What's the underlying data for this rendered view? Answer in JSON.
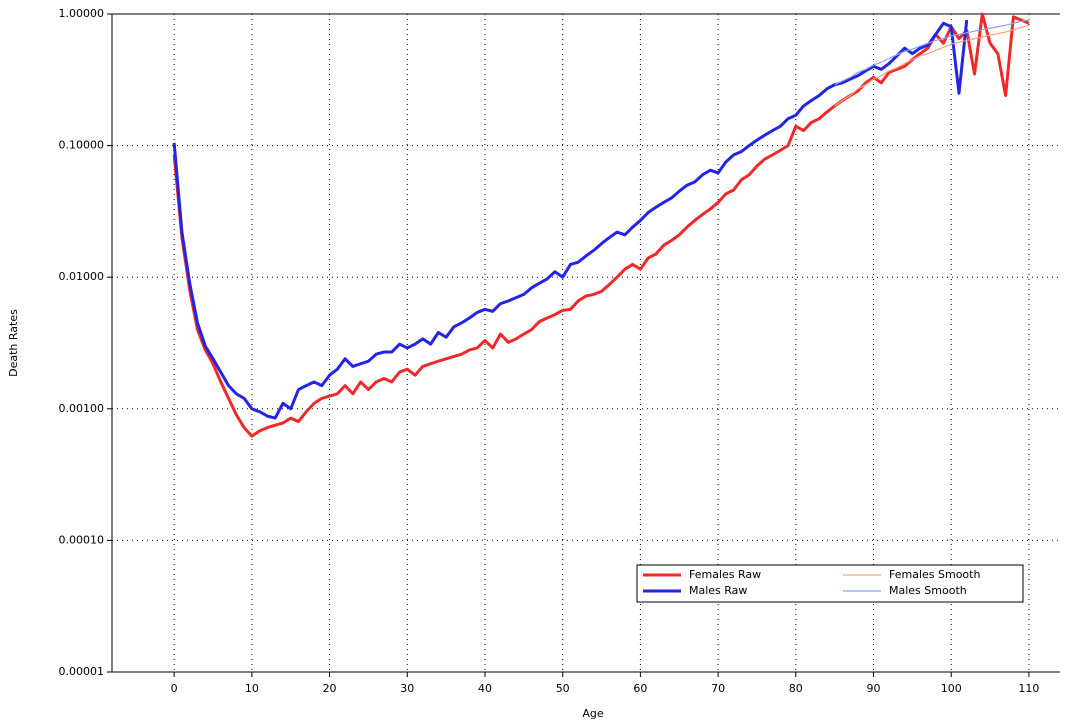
{
  "chart_data": {
    "type": "line",
    "x_label": "Age",
    "y_label": "Death Rates",
    "log_scale_y": true,
    "grid": true,
    "legend_position": "lower right",
    "xlim": [
      -8,
      114
    ],
    "ylim": [
      1e-05,
      1
    ],
    "xticks": [
      0,
      10,
      20,
      30,
      40,
      50,
      60,
      70,
      80,
      90,
      100,
      110
    ],
    "yticks": [
      {
        "value": 1e-05,
        "label": "0.00001"
      },
      {
        "value": 0.0001,
        "label": "0.00010"
      },
      {
        "value": 0.001,
        "label": "0.00100"
      },
      {
        "value": 0.01,
        "label": "0.01000"
      },
      {
        "value": 0.1,
        "label": "0.10000"
      },
      {
        "value": 1,
        "label": "1.00000"
      }
    ],
    "x": [
      0,
      1,
      2,
      3,
      4,
      5,
      6,
      7,
      8,
      9,
      10,
      11,
      12,
      13,
      14,
      15,
      16,
      17,
      18,
      19,
      20,
      21,
      22,
      23,
      24,
      25,
      26,
      27,
      28,
      29,
      30,
      31,
      32,
      33,
      34,
      35,
      36,
      37,
      38,
      39,
      40,
      41,
      42,
      43,
      44,
      45,
      46,
      47,
      48,
      49,
      50,
      51,
      52,
      53,
      54,
      55,
      56,
      57,
      58,
      59,
      60,
      61,
      62,
      63,
      64,
      65,
      66,
      67,
      68,
      69,
      70,
      71,
      72,
      73,
      74,
      75,
      76,
      77,
      78,
      79,
      80,
      81,
      82,
      83,
      84,
      85,
      86,
      87,
      88,
      89,
      90,
      91,
      92,
      93,
      94,
      95,
      96,
      97,
      98,
      99,
      100,
      101,
      102,
      103,
      104,
      105,
      106,
      107,
      108,
      109,
      110
    ],
    "series": [
      {
        "name": "Females Raw",
        "color": "#f02828",
        "width": 3,
        "values": [
          0.085,
          0.02,
          0.008,
          0.004,
          0.0028,
          0.0022,
          0.0016,
          0.0012,
          0.0009,
          0.00072,
          0.00062,
          0.00068,
          0.00072,
          0.00075,
          0.00078,
          0.00085,
          0.0008,
          0.00095,
          0.0011,
          0.0012,
          0.00125,
          0.0013,
          0.0015,
          0.0013,
          0.0016,
          0.0014,
          0.0016,
          0.0017,
          0.0016,
          0.0019,
          0.002,
          0.0018,
          0.0021,
          0.0022,
          0.0023,
          0.0024,
          0.0025,
          0.0026,
          0.0028,
          0.0029,
          0.0033,
          0.0029,
          0.0037,
          0.0032,
          0.0034,
          0.0037,
          0.004,
          0.0046,
          0.0049,
          0.0052,
          0.0056,
          0.0057,
          0.0066,
          0.0072,
          0.0074,
          0.0078,
          0.0088,
          0.01,
          0.0115,
          0.0125,
          0.0115,
          0.014,
          0.015,
          0.0175,
          0.019,
          0.021,
          0.024,
          0.027,
          0.03,
          0.033,
          0.037,
          0.043,
          0.046,
          0.055,
          0.06,
          0.07,
          0.079,
          0.085,
          0.092,
          0.1,
          0.14,
          0.13,
          0.15,
          0.16,
          0.18,
          0.2,
          0.22,
          0.24,
          0.26,
          0.3,
          0.33,
          0.3,
          0.36,
          0.38,
          0.4,
          0.45,
          0.5,
          0.55,
          0.7,
          0.6,
          0.8,
          0.65,
          0.75,
          0.35,
          1.0,
          0.6,
          0.5,
          0.24,
          0.95,
          0.9,
          0.85
        ]
      },
      {
        "name": "Males Raw",
        "color": "#2424e6",
        "width": 3,
        "values": [
          0.105,
          0.022,
          0.009,
          0.0045,
          0.003,
          0.0024,
          0.0019,
          0.0015,
          0.0013,
          0.0012,
          0.001,
          0.00095,
          0.00088,
          0.00085,
          0.0011,
          0.001,
          0.0014,
          0.0015,
          0.0016,
          0.0015,
          0.0018,
          0.002,
          0.0024,
          0.0021,
          0.0022,
          0.0023,
          0.0026,
          0.0027,
          0.0027,
          0.0031,
          0.0029,
          0.0031,
          0.0034,
          0.0031,
          0.0038,
          0.0035,
          0.0042,
          0.0045,
          0.0049,
          0.0054,
          0.0057,
          0.0055,
          0.0063,
          0.0066,
          0.007,
          0.0074,
          0.0083,
          0.009,
          0.0097,
          0.011,
          0.01,
          0.0125,
          0.013,
          0.0145,
          0.016,
          0.018,
          0.02,
          0.022,
          0.021,
          0.024,
          0.027,
          0.031,
          0.034,
          0.037,
          0.04,
          0.045,
          0.05,
          0.053,
          0.06,
          0.065,
          0.062,
          0.075,
          0.085,
          0.09,
          0.1,
          0.11,
          0.12,
          0.13,
          0.14,
          0.16,
          0.17,
          0.2,
          0.22,
          0.24,
          0.27,
          0.29,
          0.3,
          0.32,
          0.34,
          0.37,
          0.4,
          0.38,
          0.42,
          0.48,
          0.55,
          0.5,
          0.55,
          0.58,
          0.7,
          0.85,
          0.8,
          0.25,
          0.9,
          null,
          null,
          null,
          null,
          null,
          null,
          null,
          null
        ]
      },
      {
        "name": "Females Smooth",
        "color": "#f6a27c",
        "width": 1.2,
        "x": [
          85,
          86,
          87,
          88,
          89,
          90,
          91,
          92,
          93,
          94,
          95,
          96,
          97,
          98,
          99,
          100,
          101,
          102,
          103,
          104,
          105,
          106,
          107,
          108,
          109,
          110
        ],
        "values": [
          0.2,
          0.22,
          0.24,
          0.27,
          0.29,
          0.32,
          0.34,
          0.37,
          0.39,
          0.42,
          0.45,
          0.48,
          0.5,
          0.53,
          0.56,
          0.59,
          0.61,
          0.63,
          0.65,
          0.67,
          0.69,
          0.71,
          0.73,
          0.76,
          0.79,
          0.82
        ]
      },
      {
        "name": "Males Smooth",
        "color": "#86a4f2",
        "width": 1.2,
        "x": [
          85,
          86,
          87,
          88,
          89,
          90,
          91,
          92,
          93,
          94,
          95,
          96,
          97,
          98,
          99,
          100,
          101,
          102,
          103,
          104,
          105,
          106,
          107,
          108,
          109,
          110
        ],
        "values": [
          0.29,
          0.31,
          0.33,
          0.36,
          0.38,
          0.41,
          0.43,
          0.46,
          0.49,
          0.52,
          0.54,
          0.57,
          0.6,
          0.63,
          0.65,
          0.68,
          0.7,
          0.72,
          0.74,
          0.76,
          0.78,
          0.8,
          0.82,
          0.85,
          0.88,
          0.9
        ]
      }
    ]
  }
}
